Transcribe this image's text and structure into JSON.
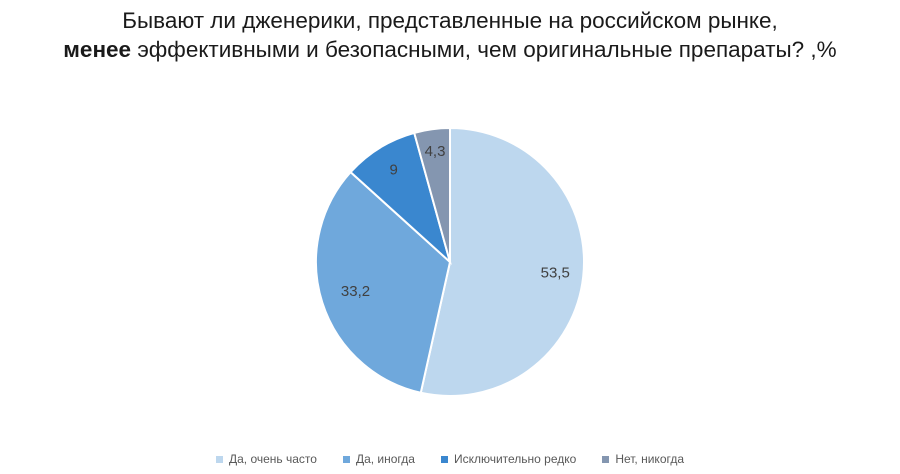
{
  "chart_data": {
    "type": "pie",
    "title_line1": "Бывают ли дженерики, представленные на российском рынке,",
    "title_line2_bold": "менее",
    "title_line2_rest": " эффективными и безопасными, чем оригинальные препараты? ,%",
    "categories": [
      "Да, очень часто",
      "Да, иногда",
      "Исключительно редко",
      "Нет, никогда"
    ],
    "values": [
      53.5,
      33.2,
      9,
      4.3
    ],
    "data_labels": [
      "53,5",
      "33,2",
      "9",
      "4,3"
    ],
    "colors": [
      "#BDD7EE",
      "#6FA8DC",
      "#3A87CF",
      "#8496B0"
    ],
    "start_angle": "12 o'clock",
    "direction": "clockwise",
    "legend_position": "bottom"
  }
}
